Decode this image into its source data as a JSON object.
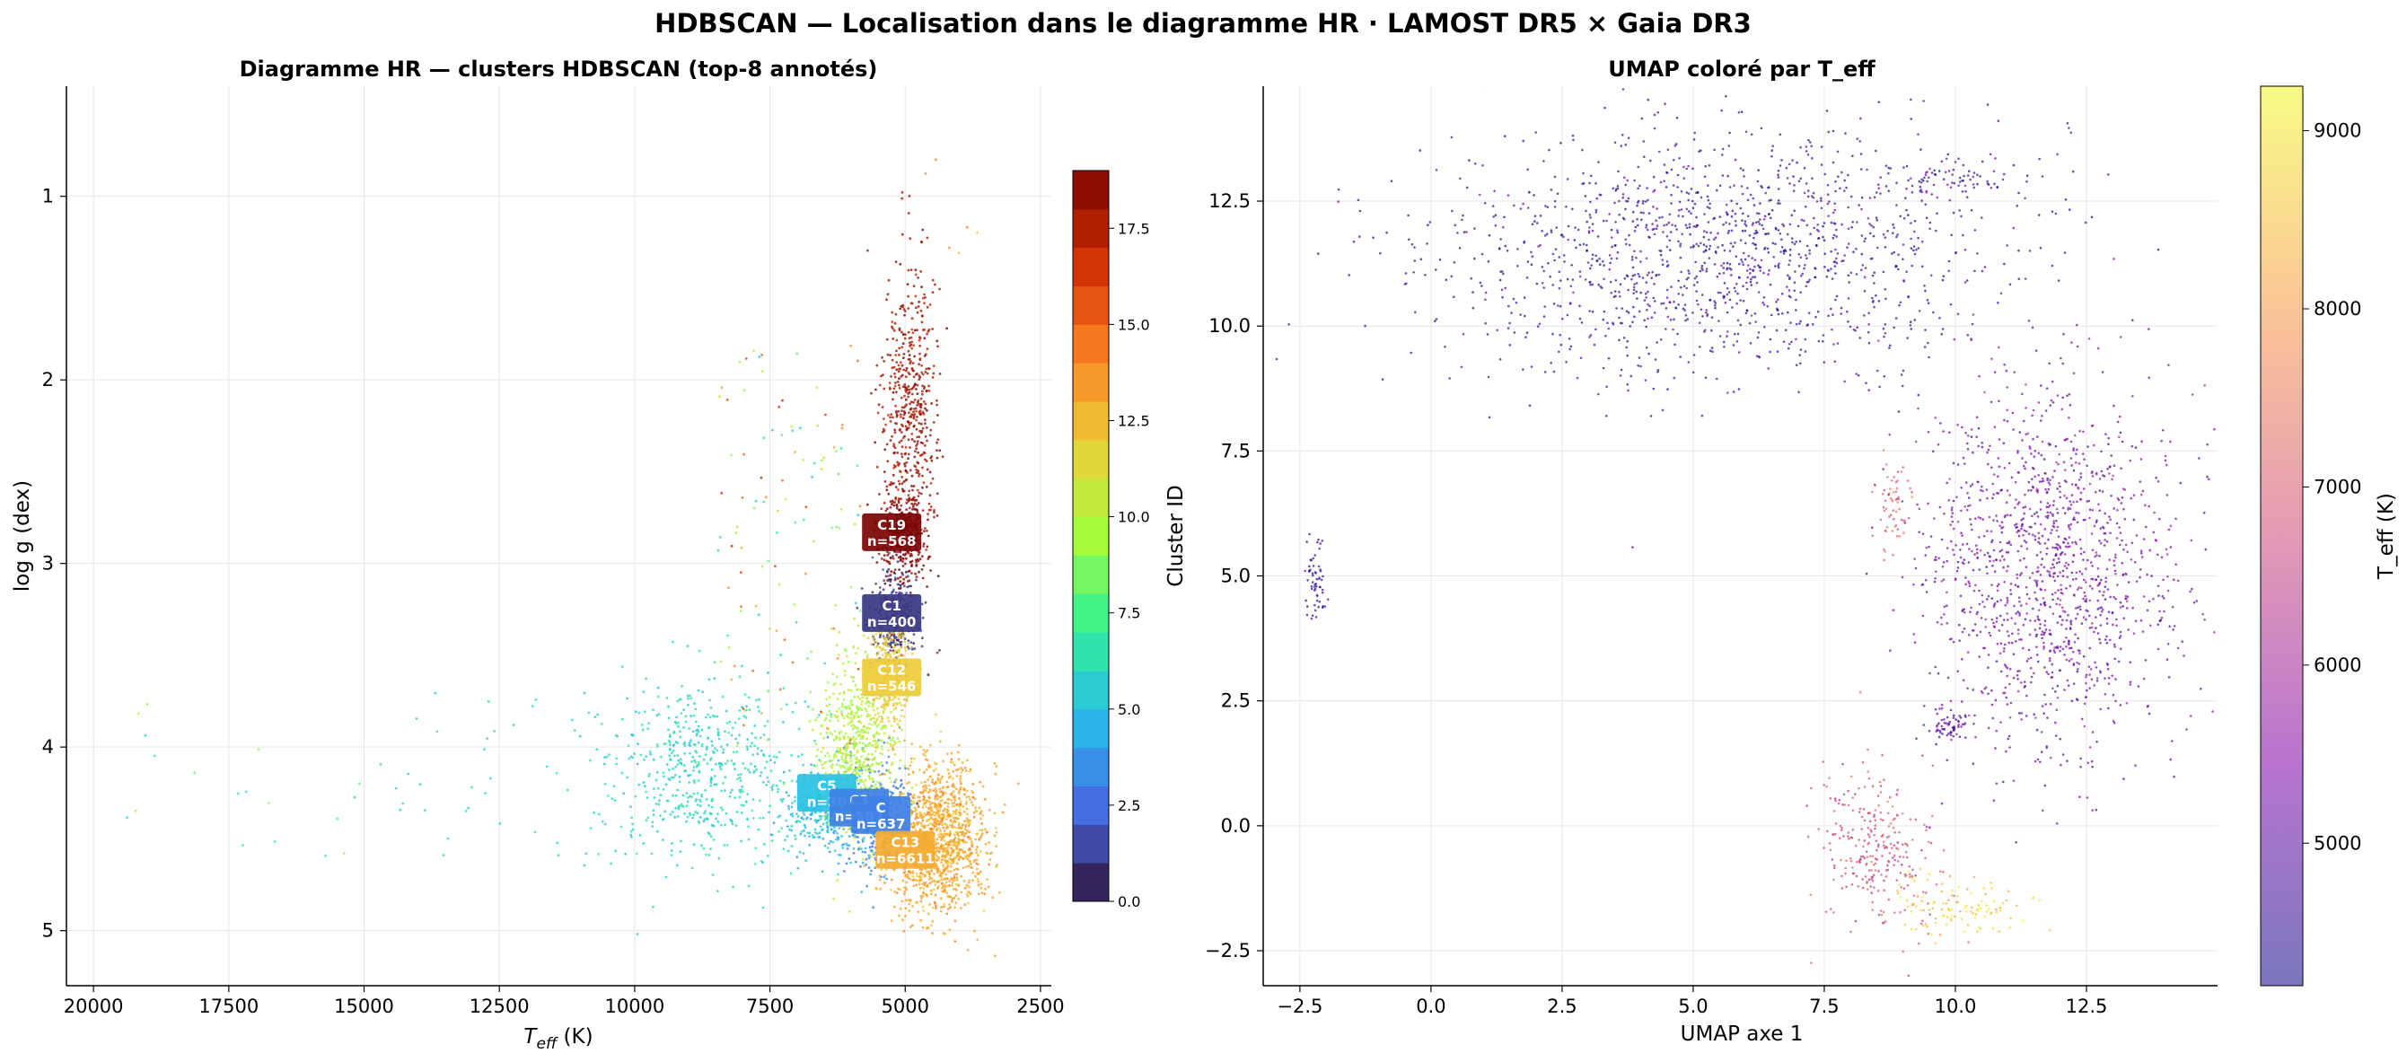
{
  "figure": {
    "suptitle": "HDBSCAN — Localisation dans le diagramme HR · LAMOST DR5 × Gaia DR3"
  },
  "chart_data": [
    {
      "type": "scatter",
      "title": "Diagramme HR — clusters HDBSCAN (top-8 annotés)",
      "xlabel_main": "T",
      "xlabel_sub": "eff",
      "xlabel_unit": " (K)",
      "ylabel": "log g (dex)",
      "x_inverted": true,
      "y_inverted": true,
      "xlim": [
        20500,
        2300
      ],
      "ylim": [
        5.3,
        0.4
      ],
      "xticks": [
        20000,
        17500,
        15000,
        12500,
        10000,
        7500,
        5000,
        2500
      ],
      "xtick_labels": [
        "20000",
        "17500",
        "15000",
        "12500",
        "10000",
        "7500",
        "5000",
        "2500"
      ],
      "yticks": [
        1,
        2,
        3,
        4,
        5
      ],
      "ytick_labels": [
        "1",
        "2",
        "3",
        "4",
        "5"
      ],
      "grid": true,
      "colorbar": {
        "label": "Cluster ID",
        "range": [
          0,
          19
        ],
        "ticks": [
          0.0,
          2.5,
          5.0,
          7.5,
          10.0,
          12.5,
          15.0,
          17.5
        ],
        "tick_labels": [
          "0.0",
          "2.5",
          "5.0",
          "7.5",
          "10.0",
          "12.5",
          "15.0",
          "17.5"
        ],
        "colormap": "turbo",
        "levels": 19
      },
      "clusters": [
        {
          "id": 1,
          "teff_range": [
            4700,
            5600
          ],
          "logg_range": [
            3.0,
            3.6
          ]
        },
        {
          "id": 3,
          "teff_range": [
            4800,
            6200
          ],
          "logg_range": [
            4.1,
            4.7
          ]
        },
        {
          "id": 5,
          "teff_range": [
            5600,
            7400
          ],
          "logg_range": [
            4.1,
            4.6
          ]
        },
        {
          "id": 6,
          "teff_range": [
            7200,
            10500
          ],
          "logg_range": [
            3.6,
            4.65
          ]
        },
        {
          "id": 10,
          "teff_range": [
            5200,
            6600
          ],
          "logg_range": [
            3.5,
            4.5
          ]
        },
        {
          "id": 12,
          "teff_range": [
            4900,
            5700
          ],
          "logg_range": [
            3.3,
            3.9
          ]
        },
        {
          "id": 13,
          "teff_range": [
            3500,
            5300
          ],
          "logg_range": [
            4.1,
            4.9
          ]
        },
        {
          "id": 18,
          "teff_range": [
            4400,
            5400
          ],
          "logg_range": [
            1.4,
            2.9
          ]
        },
        {
          "id": 19,
          "teff_range": [
            4600,
            5500
          ],
          "logg_range": [
            2.6,
            3.1
          ]
        }
      ],
      "annotations": [
        {
          "name": "C19",
          "count": "n=568",
          "teff": 5250,
          "logg": 2.83,
          "cluster": 19
        },
        {
          "name": "C1",
          "count": "n=400",
          "teff": 5250,
          "logg": 3.27,
          "cluster": 1
        },
        {
          "name": "C12",
          "count": "n=546",
          "teff": 5250,
          "logg": 3.62,
          "cluster": 12
        },
        {
          "name": "C5",
          "count": "n=30",
          "teff": 6450,
          "logg": 4.25,
          "cluster": 5
        },
        {
          "name": "C3",
          "count": "n=587",
          "teff": 5850,
          "logg": 4.33,
          "cluster": 3
        },
        {
          "name": "C",
          "count": "n=637",
          "teff": 5450,
          "logg": 4.37,
          "cluster": 3
        },
        {
          "name": "C13",
          "count": "n=6611",
          "teff": 5000,
          "logg": 4.56,
          "cluster": 13
        }
      ]
    },
    {
      "type": "scatter",
      "title": "UMAP coloré par T_eff",
      "xlabel": "UMAP axe 1",
      "ylabel": "",
      "xlim": [
        -3.2,
        15.0
      ],
      "ylim": [
        -3.2,
        14.8
      ],
      "xticks": [
        -2.5,
        0.0,
        2.5,
        5.0,
        7.5,
        10.0,
        12.5
      ],
      "xtick_labels": [
        "−2.5",
        "0.0",
        "2.5",
        "5.0",
        "7.5",
        "10.0",
        "12.5"
      ],
      "yticks": [
        -2.5,
        0.0,
        2.5,
        5.0,
        7.5,
        10.0,
        12.5
      ],
      "ytick_labels": [
        "−2.5",
        "0.0",
        "2.5",
        "5.0",
        "7.5",
        "10.0",
        "12.5"
      ],
      "grid": true,
      "colorbar": {
        "label": "T_eff (K)",
        "range": [
          4200,
          9250
        ],
        "ticks": [
          5000,
          6000,
          7000,
          8000,
          9000
        ],
        "tick_labels": [
          "5000",
          "6000",
          "7000",
          "8000",
          "9000"
        ],
        "colormap": "plasma"
      },
      "regions": [
        {
          "region": "giant-branch",
          "x_range": [
            0.0,
            10.8
          ],
          "y_range": [
            9.0,
            13.9
          ],
          "teff": 4600
        },
        {
          "region": "top-arc",
          "x_range": [
            8.4,
            11.3
          ],
          "y_range": [
            12.6,
            13.3
          ],
          "teff": 4800
        },
        {
          "region": "dwarf-arc",
          "x_range": [
            9.4,
            14.2
          ],
          "y_range": [
            1.5,
            8.8
          ],
          "teff": 5300
        },
        {
          "region": "hot-patch",
          "x_range": [
            8.4,
            9.2
          ],
          "y_range": [
            5.5,
            7.3
          ],
          "teff": 7200
        },
        {
          "region": "small-clump",
          "x_range": [
            9.5,
            10.2
          ],
          "y_range": [
            1.7,
            2.3
          ],
          "teff": 5000
        },
        {
          "region": "left-arc",
          "x_range": [
            -2.4,
            -2.0
          ],
          "y_range": [
            3.7,
            5.8
          ],
          "teff": 4500
        },
        {
          "region": "bottom-blob",
          "x_range": [
            7.4,
            9.6
          ],
          "y_range": [
            -2.1,
            1.2
          ],
          "teff": 6800
        },
        {
          "region": "hot-tail",
          "x_range": [
            9.0,
            11.3
          ],
          "y_range": [
            -2.3,
            -1.0
          ],
          "teff": 8700
        }
      ]
    }
  ]
}
